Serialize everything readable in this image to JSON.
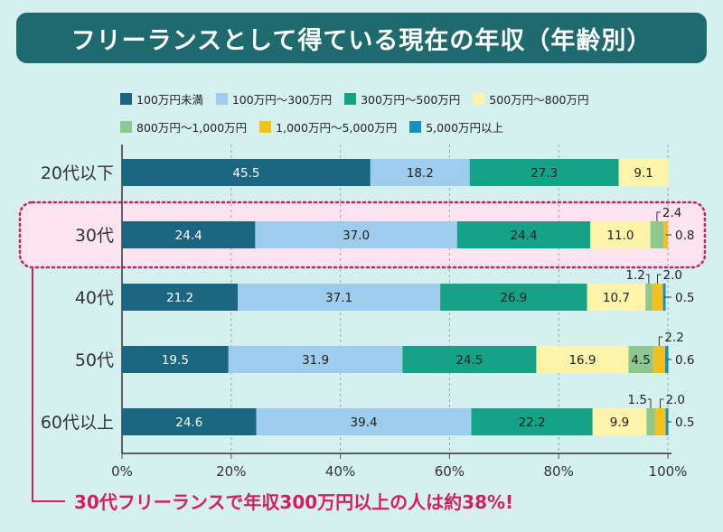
{
  "title": "フリーランスとして得ている現在の年収（年齢別）",
  "callout": "30代フリーランスで年収300万円以上の人は約38%!",
  "colors": {
    "background": "#d4f1f0",
    "title_bg": "#1e6a6e",
    "highlight_fill": "#fde4ef",
    "highlight_border": "#d21f61"
  },
  "chart_data": {
    "type": "bar",
    "orientation": "horizontal",
    "stacked": true,
    "categories": [
      "20代以下",
      "30代",
      "40代",
      "50代",
      "60代以上"
    ],
    "highlighted_category": "30代",
    "series": [
      {
        "name": "100万円未満",
        "color": "#1a6680",
        "text_color": "#ffffff",
        "values": [
          45.5,
          24.4,
          21.2,
          19.5,
          24.6
        ]
      },
      {
        "name": "100万円～300万円",
        "color": "#9dccec",
        "text_color": "#222222",
        "values": [
          18.2,
          37.0,
          37.1,
          31.9,
          39.4
        ]
      },
      {
        "name": "300万円～500万円",
        "color": "#14a386",
        "text_color": "#222222",
        "values": [
          27.3,
          24.4,
          26.9,
          24.5,
          22.2
        ]
      },
      {
        "name": "500万円～800万円",
        "color": "#fdf3a9",
        "text_color": "#222222",
        "values": [
          9.1,
          11.0,
          10.7,
          16.9,
          9.9
        ]
      },
      {
        "name": "800万円～1,000万円",
        "color": "#8dc891",
        "text_color": "#222222",
        "values": [
          0,
          2.4,
          1.2,
          4.5,
          1.5
        ]
      },
      {
        "name": "1,000万円～5,000万円",
        "color": "#f4c01f",
        "text_color": "#222222",
        "values": [
          0,
          0.8,
          2.0,
          2.2,
          2.0
        ]
      },
      {
        "name": "5,000万円以上",
        "color": "#1592be",
        "text_color": "#222222",
        "values": [
          0,
          0,
          0.5,
          0.6,
          0.5
        ]
      }
    ],
    "data_labels": [
      [
        "45.5",
        "18.2",
        "27.3",
        "9.1",
        "",
        "",
        ""
      ],
      [
        "24.4",
        "37.0",
        "24.4",
        "11.0",
        "2.4",
        "0.8",
        ""
      ],
      [
        "21.2",
        "37.1",
        "26.9",
        "10.7",
        "1.2",
        "2.0",
        "0.5"
      ],
      [
        "19.5",
        "31.9",
        "24.5",
        "16.9",
        "4.5",
        "2.2",
        "0.6"
      ],
      [
        "24.6",
        "39.4",
        "22.2",
        "9.9",
        "1.5",
        "2.0",
        "0.5"
      ]
    ],
    "xlim": [
      0,
      100
    ],
    "x_ticks": [
      "0%",
      "20%",
      "40%",
      "60%",
      "80%",
      "100%"
    ],
    "legend_position": "top"
  }
}
